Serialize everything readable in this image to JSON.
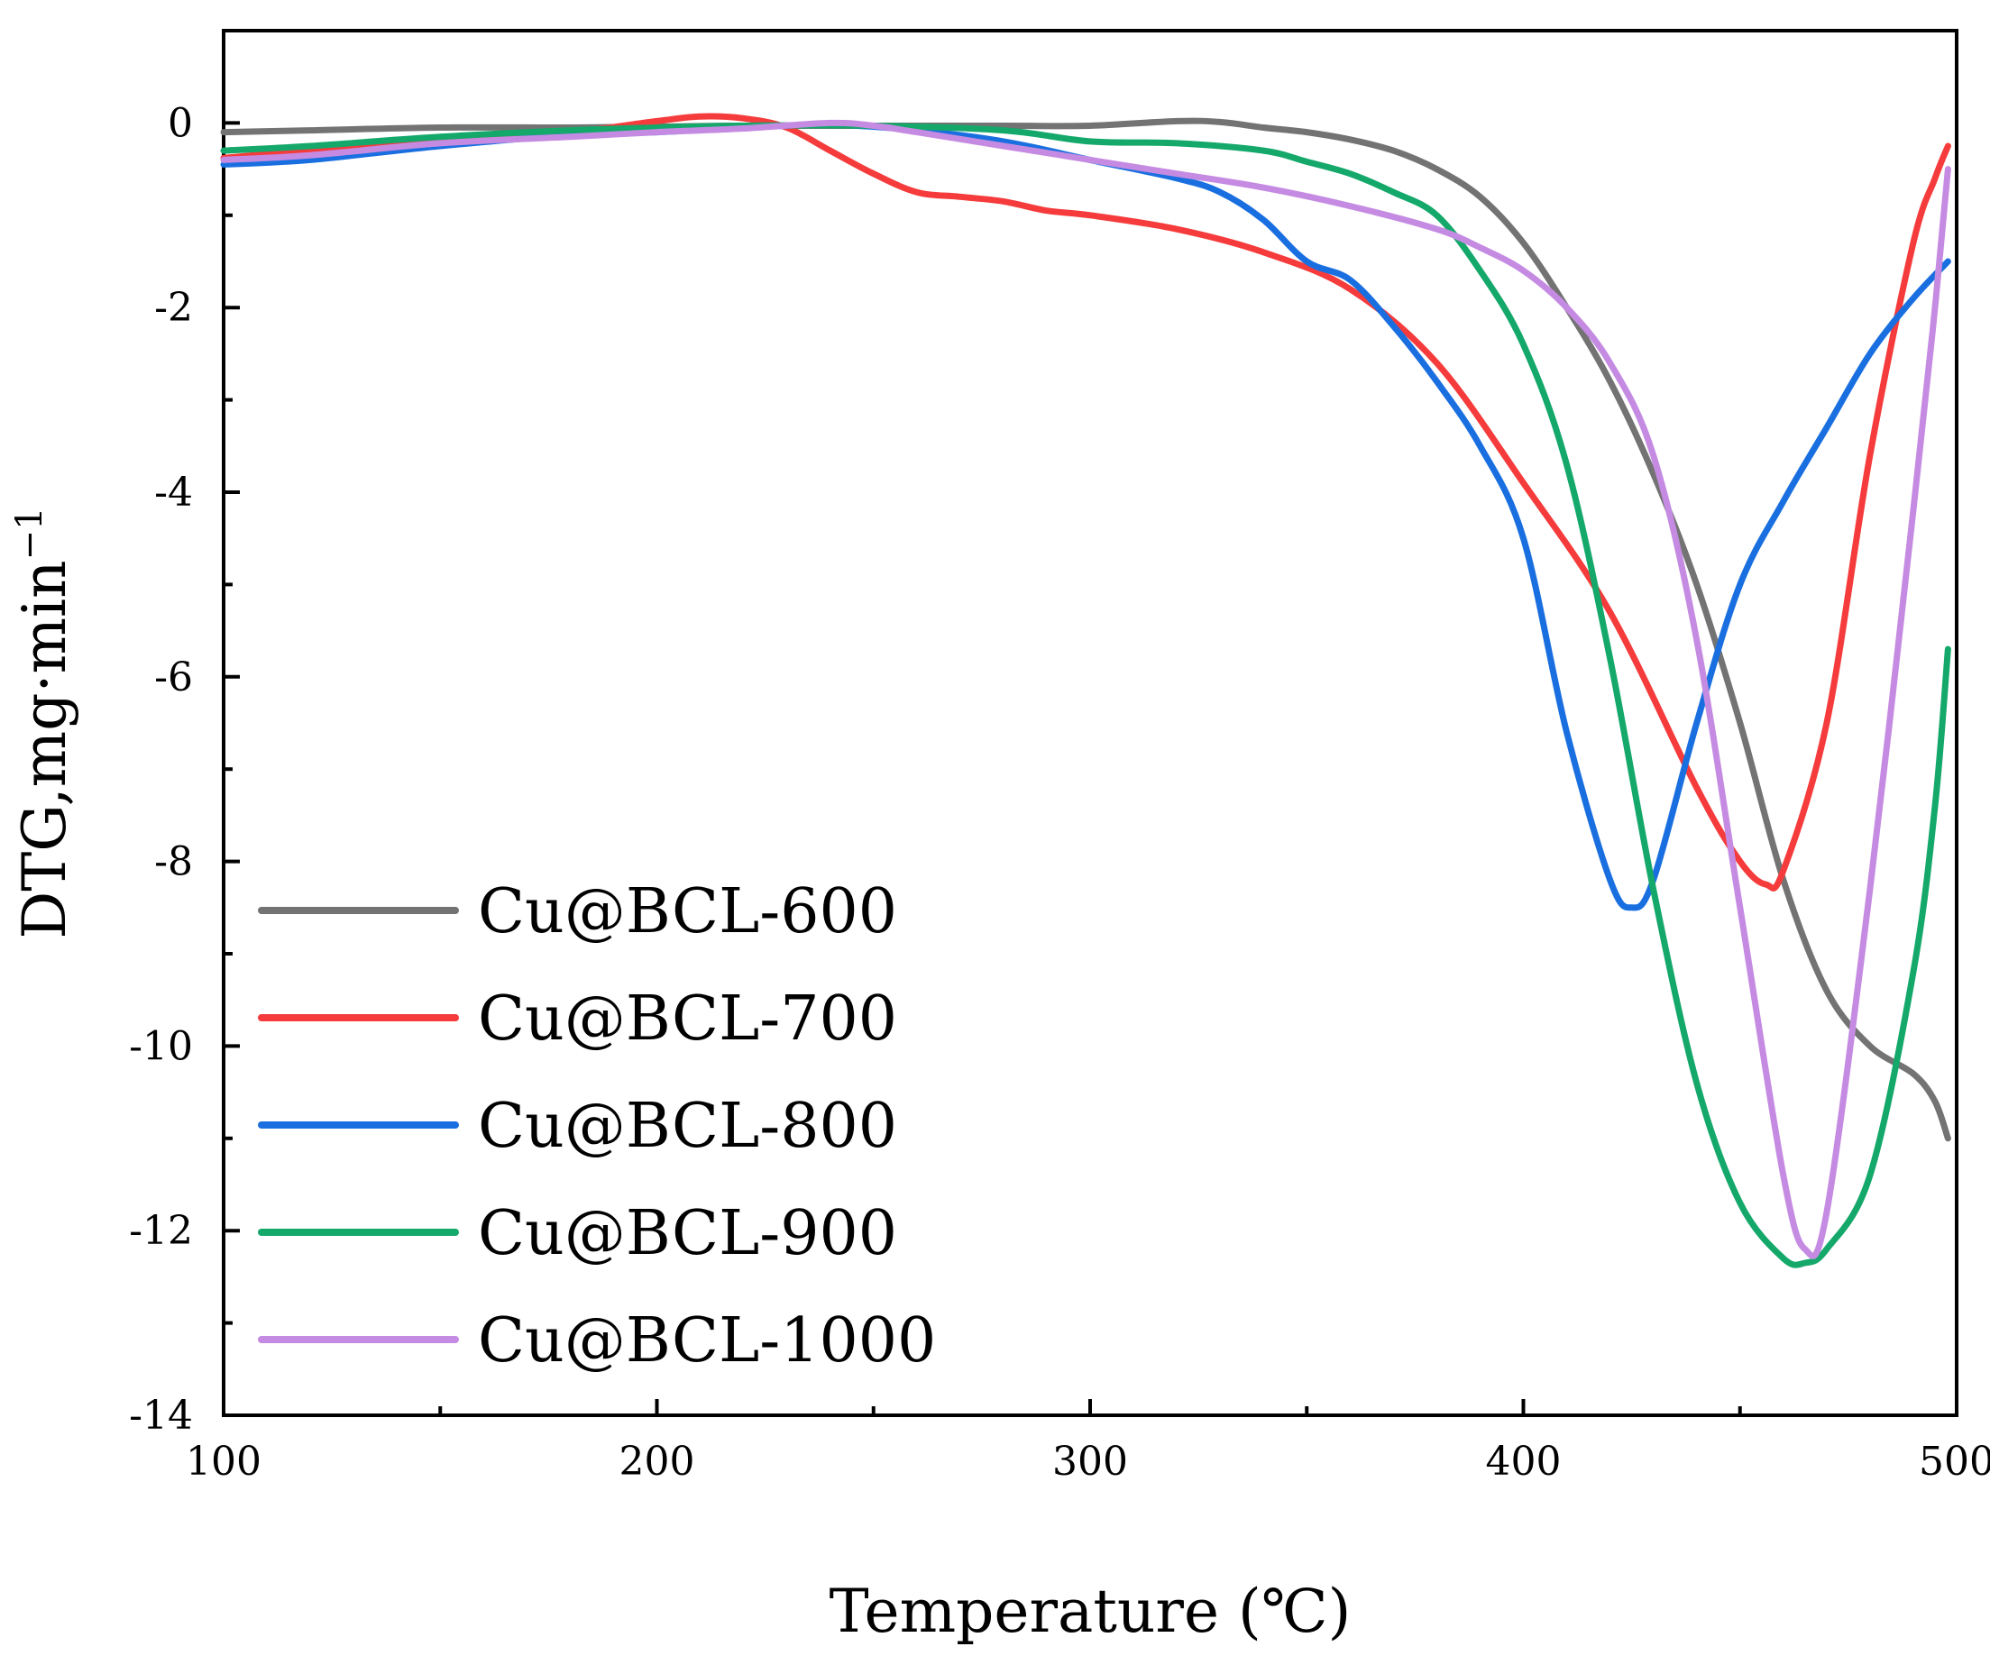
{
  "chart_data": {
    "type": "line",
    "title": "",
    "xlabel": "Temperature (℃)",
    "ylabel_main": "DTG,mg·min",
    "ylabel_sup": "−1",
    "xlim": [
      100,
      500
    ],
    "ylim": [
      -14,
      1
    ],
    "xticks": [
      100,
      200,
      300,
      400,
      500
    ],
    "yticks": [
      0,
      -2,
      -4,
      -6,
      -8,
      -10,
      -12,
      -14
    ],
    "xtick_labels": [
      "100",
      "200",
      "300",
      "400",
      "500"
    ],
    "ytick_labels": [
      "0",
      "-2",
      "-4",
      "-6",
      "-8",
      "-10",
      "-12",
      "-14"
    ],
    "grid": false,
    "legend_position": "bottom-left",
    "series": [
      {
        "name": "Cu@BCL-600",
        "color": "#737373",
        "x": [
          100,
          120,
          150,
          180,
          200,
          220,
          250,
          280,
          300,
          320,
          330,
          340,
          350,
          360,
          370,
          380,
          390,
          400,
          410,
          420,
          430,
          440,
          450,
          460,
          470,
          480,
          490,
          495,
          498
        ],
        "y": [
          -0.1,
          -0.08,
          -0.05,
          -0.05,
          -0.04,
          -0.03,
          -0.03,
          -0.03,
          -0.03,
          0.02,
          0.01,
          -0.05,
          -0.1,
          -0.18,
          -0.3,
          -0.5,
          -0.8,
          -1.3,
          -2.0,
          -2.8,
          -3.8,
          -5.0,
          -6.5,
          -8.2,
          -9.4,
          -10.0,
          -10.3,
          -10.6,
          -11.0
        ]
      },
      {
        "name": "Cu@BCL-700",
        "color": "#f53b3b",
        "x": [
          100,
          120,
          150,
          180,
          200,
          210,
          220,
          230,
          240,
          250,
          260,
          270,
          280,
          290,
          300,
          320,
          340,
          360,
          380,
          400,
          420,
          440,
          450,
          456,
          460,
          470,
          480,
          490,
          495,
          498
        ],
        "y": [
          -0.38,
          -0.3,
          -0.2,
          -0.1,
          0.02,
          0.07,
          0.05,
          -0.05,
          -0.3,
          -0.55,
          -0.75,
          -0.8,
          -0.85,
          -0.95,
          -1.0,
          -1.15,
          -1.4,
          -1.8,
          -2.6,
          -3.9,
          -5.3,
          -7.2,
          -8.0,
          -8.25,
          -8.1,
          -6.5,
          -3.6,
          -1.3,
          -0.6,
          -0.25
        ]
      },
      {
        "name": "Cu@BCL-800",
        "color": "#1a6fe0",
        "x": [
          100,
          120,
          150,
          180,
          200,
          220,
          240,
          260,
          280,
          300,
          320,
          330,
          340,
          350,
          360,
          370,
          380,
          390,
          400,
          410,
          420,
          425,
          430,
          440,
          450,
          460,
          470,
          480,
          490,
          498
        ],
        "y": [
          -0.45,
          -0.4,
          -0.25,
          -0.13,
          -0.1,
          -0.05,
          -0.02,
          -0.08,
          -0.2,
          -0.4,
          -0.6,
          -0.75,
          -1.05,
          -1.5,
          -1.7,
          -2.2,
          -2.8,
          -3.5,
          -4.5,
          -6.6,
          -8.2,
          -8.5,
          -8.2,
          -6.5,
          -5.0,
          -4.1,
          -3.3,
          -2.5,
          -1.9,
          -1.5
        ]
      },
      {
        "name": "Cu@BCL-900",
        "color": "#14a86a",
        "x": [
          100,
          120,
          150,
          180,
          200,
          220,
          250,
          280,
          300,
          320,
          340,
          350,
          360,
          370,
          380,
          390,
          400,
          410,
          420,
          430,
          440,
          450,
          460,
          465,
          470,
          480,
          490,
          495,
          498
        ],
        "y": [
          -0.3,
          -0.25,
          -0.15,
          -0.08,
          -0.05,
          -0.03,
          -0.03,
          -0.08,
          -0.2,
          -0.22,
          -0.3,
          -0.42,
          -0.55,
          -0.75,
          -1.0,
          -1.6,
          -2.4,
          -3.7,
          -5.8,
          -8.3,
          -10.4,
          -11.7,
          -12.3,
          -12.35,
          -12.2,
          -11.4,
          -9.2,
          -7.4,
          -5.7
        ]
      },
      {
        "name": "Cu@BCL-1000",
        "color": "#c58be2",
        "x": [
          100,
          120,
          150,
          180,
          200,
          220,
          240,
          250,
          260,
          280,
          300,
          320,
          340,
          360,
          380,
          390,
          400,
          410,
          420,
          430,
          440,
          450,
          460,
          465,
          470,
          480,
          490,
          495,
          498
        ],
        "y": [
          -0.4,
          -0.35,
          -0.22,
          -0.15,
          -0.1,
          -0.06,
          0.0,
          -0.03,
          -0.1,
          -0.25,
          -0.4,
          -0.55,
          -0.7,
          -0.9,
          -1.15,
          -1.35,
          -1.6,
          -2.0,
          -2.6,
          -3.6,
          -5.6,
          -8.5,
          -11.4,
          -12.2,
          -11.8,
          -8.3,
          -4.2,
          -2.0,
          -0.5
        ]
      }
    ]
  }
}
